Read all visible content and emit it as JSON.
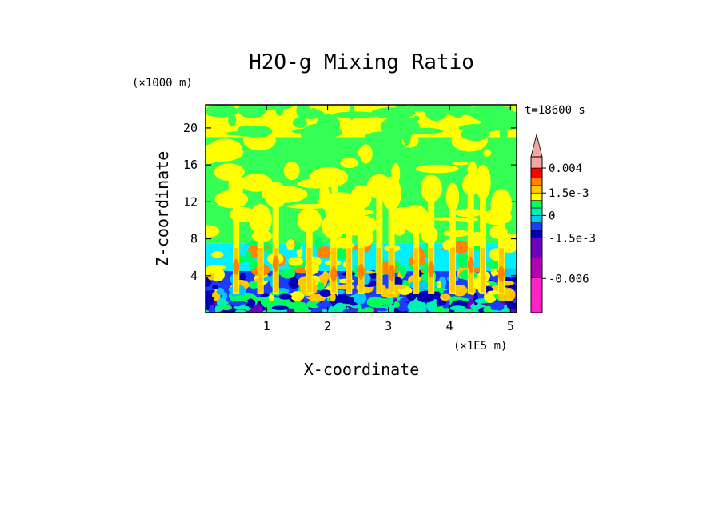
{
  "chart_data": {
    "type": "heatmap",
    "title": "H2O-g Mixing Ratio",
    "xlabel": "X-coordinate",
    "ylabel": "Z-coordinate",
    "x_unit_label": "(×1E5 m)",
    "y_unit_label": "(×1000 m)",
    "time_label": "t=18600 s",
    "xlim": [
      0,
      5.1
    ],
    "ylim": [
      0,
      22.5
    ],
    "x_ticks": [
      1,
      2,
      3,
      4,
      5
    ],
    "y_ticks": [
      4,
      8,
      12,
      16,
      20
    ],
    "x_tick_labels": [
      "1",
      "2",
      "3",
      "4",
      "5"
    ],
    "y_tick_labels": [
      "4",
      "8",
      "12",
      "16",
      "20"
    ],
    "colorbar": {
      "levels": [
        -0.009,
        -0.006,
        -0.003,
        -0.0015,
        -0.001,
        -0.0005,
        0,
        0.0005,
        0.001,
        0.0015,
        0.002,
        0.003,
        0.004,
        0.006
      ],
      "colors": [
        "#ff22c8",
        "#b400b4",
        "#6e00be",
        "#0000b4",
        "#1e3cff",
        "#00c8ff",
        "#00f0b4",
        "#00ff5a",
        "#ffff00",
        "#ffc800",
        "#ff8200",
        "#ff0000",
        "#f4a6a0"
      ],
      "tick_values": [
        0.004,
        0.0015,
        0,
        -0.0015,
        -0.006
      ],
      "tick_labels": [
        "0.004",
        "1.5e-3",
        "0",
        "-1.5e-3",
        "-0.006"
      ],
      "extend": "max"
    },
    "field_bands": [
      {
        "z_range": [
          0,
          1.5
        ],
        "dominant": "#6e00be",
        "mixed": [
          "#0000b4",
          "#1e3cff",
          "#00f0b4",
          "#00ff5a"
        ]
      },
      {
        "z_range": [
          1.5,
          4.5
        ],
        "dominant": "#1e3cff",
        "mixed": [
          "#0000b4",
          "#00c8ff",
          "#00ff5a",
          "#ffff00",
          "#ffc800"
        ]
      },
      {
        "z_range": [
          4.5,
          7.5
        ],
        "dominant": "#00f0ff",
        "mixed": [
          "#00ff5a",
          "#ffff00",
          "#ff8200"
        ]
      },
      {
        "z_range": [
          7.5,
          19
        ],
        "dominant": "#33ff55",
        "mixed": [
          "#ffff00"
        ]
      },
      {
        "z_range": [
          19,
          22.5
        ],
        "dominant": "#ffff00",
        "mixed": [
          "#33ff55"
        ]
      }
    ],
    "plumes_x": [
      0.5,
      0.9,
      1.15,
      1.7,
      2.1,
      2.35,
      2.55,
      2.85,
      3.05,
      3.45,
      3.7,
      4.05,
      4.35,
      4.55,
      4.85
    ]
  }
}
